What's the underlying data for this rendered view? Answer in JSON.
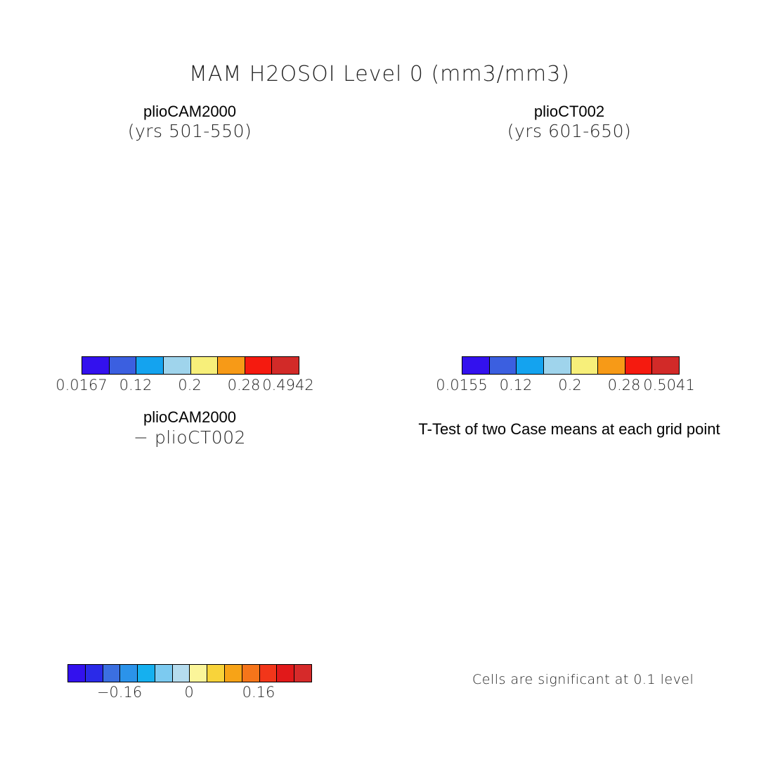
{
  "main_title": "MAM H2OSOI Level 0 (mm3/mm3)",
  "panels": {
    "tl": {
      "title": "plioCAM2000",
      "subtitle": "(yrs 501-550)"
    },
    "tr": {
      "title": "plioCT002",
      "subtitle": "(yrs 601-650)"
    },
    "bl": {
      "title": "plioCAM2000",
      "subtitle": "- plioCT002"
    },
    "br": {
      "title": "T-Test of two Case means at each grid point"
    }
  },
  "colorbars": {
    "tl": {
      "colors": [
        "#3311ee",
        "#3b5fe0",
        "#14a3ef",
        "#9fd4ec",
        "#f7ef7a",
        "#f79a17",
        "#f51a0f",
        "#d22a28"
      ],
      "labels": [
        "0.0167",
        "0.12",
        "0.2",
        "0.28",
        "0.4942"
      ]
    },
    "tr": {
      "colors": [
        "#3311ee",
        "#3b5fe0",
        "#14a3ef",
        "#9fd4ec",
        "#f7ef7a",
        "#f79a17",
        "#f51a0f",
        "#d22a28"
      ],
      "labels": [
        "0.0155",
        "0.12",
        "0.2",
        "0.28",
        "0.5041"
      ]
    },
    "bl": {
      "colors": [
        "#3311ee",
        "#2a2ae8",
        "#3b6fe0",
        "#2b93ea",
        "#15b0ef",
        "#7ccaf0",
        "#b5dcee",
        "#fbf59a",
        "#f8d33a",
        "#f7a317",
        "#f6751a",
        "#f2361a",
        "#e1191a",
        "#d62a2a"
      ],
      "labels": [
        "-0.16",
        "0",
        "0.16"
      ]
    }
  },
  "significance_note": "Cells are significant at 0.1 level",
  "map_fills": {
    "tl": "#f0701c",
    "tr": "#ef7a1e",
    "bl": "#cfe7f2",
    "br": "#f0141a"
  }
}
